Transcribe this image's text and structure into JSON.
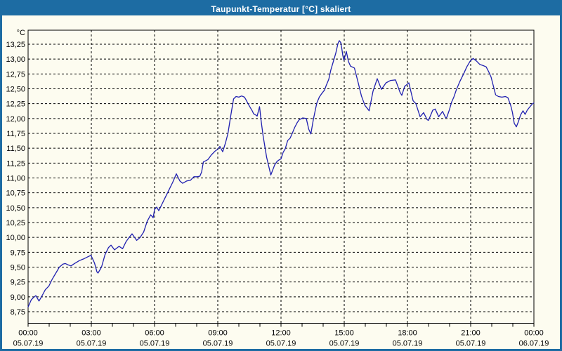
{
  "window": {
    "title": "Taupunkt-Temperatur [°C] skaliert"
  },
  "colors": {
    "frame": "#1d6ca3",
    "title_text": "#ffffff",
    "background": "#fdfcf0",
    "line": "#2020b0",
    "grid": "#000000",
    "text": "#000000"
  },
  "chart_data": {
    "type": "line",
    "title": "Taupunkt-Temperatur [°C] skaliert",
    "unit_label": "°C",
    "ylabel": "°C",
    "ylim": [
      8.55,
      13.49
    ],
    "grid": "dashed",
    "legend_position": "none",
    "decimal_separator": ",",
    "yticks": {
      "start": 8.75,
      "end": 13.25,
      "step": 0.25
    },
    "x_minutes_range": [
      0,
      1440
    ],
    "minor_tick_every_minutes": 60,
    "xticks": [
      {
        "minutes": 0,
        "time": "00:00",
        "date": "05.07.19"
      },
      {
        "minutes": 180,
        "time": "03:00",
        "date": "05.07.19"
      },
      {
        "minutes": 360,
        "time": "06:00",
        "date": "05.07.19"
      },
      {
        "minutes": 540,
        "time": "09:00",
        "date": "05.07.19"
      },
      {
        "minutes": 720,
        "time": "12:00",
        "date": "05.07.19"
      },
      {
        "minutes": 900,
        "time": "15:00",
        "date": "05.07.19"
      },
      {
        "minutes": 1080,
        "time": "18:00",
        "date": "05.07.19"
      },
      {
        "minutes": 1260,
        "time": "21:00",
        "date": "05.07.19"
      },
      {
        "minutes": 1440,
        "time": "00:00",
        "date": "06.07.19"
      }
    ],
    "series": [
      {
        "name": "Taupunkt-Temperatur [°C]",
        "points": [
          [
            0,
            8.83
          ],
          [
            9,
            8.95
          ],
          [
            14,
            8.98
          ],
          [
            18,
            9.0
          ],
          [
            22,
            9.02
          ],
          [
            26,
            8.98
          ],
          [
            31,
            8.93
          ],
          [
            35,
            8.97
          ],
          [
            39,
            9.01
          ],
          [
            49,
            9.12
          ],
          [
            59,
            9.18
          ],
          [
            69,
            9.3
          ],
          [
            79,
            9.4
          ],
          [
            89,
            9.5
          ],
          [
            99,
            9.55
          ],
          [
            106,
            9.56
          ],
          [
            113,
            9.54
          ],
          [
            122,
            9.52
          ],
          [
            132,
            9.56
          ],
          [
            146,
            9.61
          ],
          [
            159,
            9.64
          ],
          [
            169,
            9.67
          ],
          [
            179,
            9.7
          ],
          [
            189,
            9.57
          ],
          [
            196,
            9.42
          ],
          [
            199,
            9.4
          ],
          [
            209,
            9.5
          ],
          [
            219,
            9.71
          ],
          [
            229,
            9.83
          ],
          [
            236,
            9.87
          ],
          [
            246,
            9.79
          ],
          [
            259,
            9.85
          ],
          [
            269,
            9.81
          ],
          [
            279,
            9.93
          ],
          [
            289,
            10.01
          ],
          [
            296,
            10.06
          ],
          [
            309,
            9.95
          ],
          [
            319,
            10.0
          ],
          [
            329,
            10.09
          ],
          [
            339,
            10.27
          ],
          [
            349,
            10.38
          ],
          [
            356,
            10.33
          ],
          [
            360,
            10.47
          ],
          [
            366,
            10.51
          ],
          [
            372,
            10.45
          ],
          [
            382,
            10.57
          ],
          [
            392,
            10.69
          ],
          [
            402,
            10.81
          ],
          [
            412,
            10.93
          ],
          [
            422,
            11.07
          ],
          [
            432,
            10.95
          ],
          [
            440,
            10.91
          ],
          [
            452,
            10.95
          ],
          [
            462,
            10.96
          ],
          [
            472,
            11.02
          ],
          [
            482,
            11.02
          ],
          [
            489,
            11.03
          ],
          [
            494,
            11.1
          ],
          [
            499,
            11.27
          ],
          [
            506,
            11.29
          ],
          [
            512,
            11.31
          ],
          [
            522,
            11.39
          ],
          [
            532,
            11.45
          ],
          [
            539,
            11.48
          ],
          [
            546,
            11.53
          ],
          [
            554,
            11.44
          ],
          [
            562,
            11.59
          ],
          [
            569,
            11.75
          ],
          [
            577,
            12.05
          ],
          [
            585,
            12.33
          ],
          [
            592,
            12.37
          ],
          [
            600,
            12.36
          ],
          [
            608,
            12.38
          ],
          [
            616,
            12.36
          ],
          [
            619,
            12.33
          ],
          [
            629,
            12.22
          ],
          [
            639,
            12.12
          ],
          [
            642,
            12.08
          ],
          [
            648,
            12.06
          ],
          [
            652,
            12.04
          ],
          [
            659,
            12.2
          ],
          [
            663,
            11.98
          ],
          [
            669,
            11.71
          ],
          [
            679,
            11.35
          ],
          [
            691,
            11.05
          ],
          [
            702,
            11.22
          ],
          [
            709,
            11.28
          ],
          [
            716,
            11.31
          ],
          [
            720,
            11.32
          ],
          [
            726,
            11.43
          ],
          [
            732,
            11.49
          ],
          [
            739,
            11.63
          ],
          [
            746,
            11.67
          ],
          [
            752,
            11.75
          ],
          [
            759,
            11.85
          ],
          [
            766,
            11.93
          ],
          [
            772,
            11.98
          ],
          [
            782,
            12.01
          ],
          [
            792,
            12.0
          ],
          [
            799,
            11.82
          ],
          [
            805,
            11.74
          ],
          [
            812,
            11.98
          ],
          [
            819,
            12.18
          ],
          [
            822,
            12.26
          ],
          [
            829,
            12.36
          ],
          [
            836,
            12.42
          ],
          [
            844,
            12.48
          ],
          [
            849,
            12.56
          ],
          [
            856,
            12.66
          ],
          [
            862,
            12.82
          ],
          [
            869,
            12.96
          ],
          [
            876,
            13.1
          ],
          [
            882,
            13.26
          ],
          [
            886,
            13.31
          ],
          [
            890,
            13.28
          ],
          [
            893,
            13.18
          ],
          [
            896,
            13.06
          ],
          [
            899,
            12.98
          ],
          [
            906,
            13.13
          ],
          [
            912,
            12.96
          ],
          [
            918,
            12.88
          ],
          [
            922,
            12.87
          ],
          [
            929,
            12.85
          ],
          [
            939,
            12.62
          ],
          [
            949,
            12.38
          ],
          [
            959,
            12.22
          ],
          [
            971,
            12.13
          ],
          [
            982,
            12.46
          ],
          [
            994,
            12.67
          ],
          [
            1006,
            12.49
          ],
          [
            1019,
            12.6
          ],
          [
            1032,
            12.64
          ],
          [
            1046,
            12.65
          ],
          [
            1059,
            12.44
          ],
          [
            1064,
            12.39
          ],
          [
            1072,
            12.54
          ],
          [
            1084,
            12.6
          ],
          [
            1096,
            12.3
          ],
          [
            1104,
            12.25
          ],
          [
            1116,
            12.03
          ],
          [
            1126,
            12.1
          ],
          [
            1136,
            11.98
          ],
          [
            1140,
            11.97
          ],
          [
            1152,
            12.14
          ],
          [
            1159,
            12.16
          ],
          [
            1169,
            12.03
          ],
          [
            1180,
            12.12
          ],
          [
            1189,
            12.01
          ],
          [
            1192,
            12.02
          ],
          [
            1199,
            12.14
          ],
          [
            1206,
            12.28
          ],
          [
            1212,
            12.36
          ],
          [
            1219,
            12.48
          ],
          [
            1229,
            12.62
          ],
          [
            1239,
            12.74
          ],
          [
            1249,
            12.87
          ],
          [
            1259,
            12.97
          ],
          [
            1267,
            13.01
          ],
          [
            1276,
            12.97
          ],
          [
            1286,
            12.91
          ],
          [
            1296,
            12.89
          ],
          [
            1304,
            12.87
          ],
          [
            1311,
            12.79
          ],
          [
            1318,
            12.7
          ],
          [
            1324,
            12.56
          ],
          [
            1331,
            12.4
          ],
          [
            1339,
            12.37
          ],
          [
            1349,
            12.36
          ],
          [
            1359,
            12.37
          ],
          [
            1366,
            12.35
          ],
          [
            1374,
            12.22
          ],
          [
            1379,
            12.1
          ],
          [
            1384,
            11.92
          ],
          [
            1390,
            11.86
          ],
          [
            1396,
            11.95
          ],
          [
            1402,
            12.06
          ],
          [
            1409,
            12.13
          ],
          [
            1415,
            12.07
          ],
          [
            1421,
            12.14
          ],
          [
            1429,
            12.2
          ],
          [
            1436,
            12.25
          ],
          [
            1440,
            12.26
          ]
        ]
      }
    ]
  }
}
